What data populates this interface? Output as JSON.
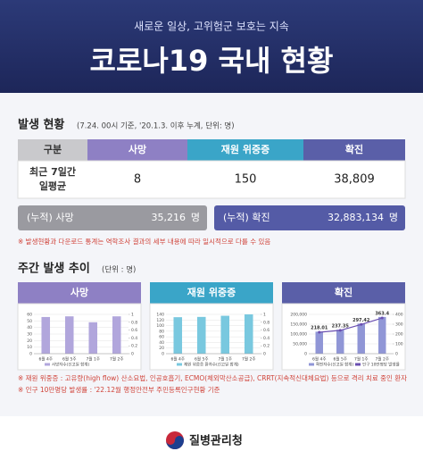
{
  "header": {
    "subtitle": "새로운 일상, 고위험군 보호는 지속",
    "title": "코로나19 국내 현황"
  },
  "status": {
    "title": "발생 현황",
    "note": "(7.24. 00시 기준, '20.1.3. 이후 누계, 단위: 명)",
    "table": {
      "columns": [
        "구분",
        "사망",
        "재원 위중증",
        "확진"
      ],
      "rows": [
        {
          "label": [
            "최근 7일간",
            "일평균"
          ],
          "values": [
            "8",
            "150",
            "38,809"
          ]
        }
      ]
    },
    "cumulative": [
      {
        "label": "(누적) 사망",
        "value": "35,216",
        "unit": "명"
      },
      {
        "label": "(누적) 확진",
        "value": "32,883,134",
        "unit": "명"
      }
    ],
    "footnote": "※ 발생현황과 다운로드 통계는 역학조사 결과의 세부 내용에 따라 일시적으로 다를 수 있음"
  },
  "weekly": {
    "title": "주간 발생 추이",
    "unit": "(단위 : 명)",
    "charts": [
      {
        "type": "bar",
        "title": "사망",
        "categories": [
          "6월 4주",
          "6월 5주",
          "7월 1주",
          "7월 2주"
        ],
        "series": [
          {
            "name": "사망자수(신고일 합계)",
            "color": "#b1a6dc",
            "values": [
              56,
              57,
              48,
              57
            ]
          }
        ],
        "ylim": [
          0,
          60
        ],
        "yticks": [
          0,
          10,
          20,
          30,
          40,
          50,
          60
        ],
        "y2lim": [
          0,
          1
        ],
        "y2ticks": [
          0,
          0.2,
          0.4,
          0.6,
          0.8,
          1
        ]
      },
      {
        "type": "bar",
        "title": "재원 위중증",
        "categories": [
          "6월 4주",
          "6월 5주",
          "7월 1주",
          "7월 2주"
        ],
        "series": [
          {
            "name": "재원 위중증 환자수(신고일 합계)",
            "color": "#79c8df",
            "values": [
              130,
              131,
              135,
              140
            ]
          }
        ],
        "ylim": [
          0,
          140
        ],
        "yticks": [
          0,
          20,
          40,
          60,
          80,
          100,
          120,
          140
        ],
        "y2lim": [
          0,
          1
        ],
        "y2ticks": [
          0,
          0.2,
          0.4,
          0.6,
          0.8,
          1
        ]
      },
      {
        "type": "bar",
        "title": "확진",
        "categories": [
          "6월 4주",
          "6월 5주",
          "7월 1주",
          "7월 2주"
        ],
        "series": [
          {
            "name": "확진자수(신고일 합계)",
            "color": "#9096d6",
            "values": [
              112000,
              122000,
              153000,
              187000
            ]
          },
          {
            "name": "인구 10만명당 발생률",
            "type": "line",
            "axis": "y2",
            "color": "#6a4fb0",
            "values": [
              218.01,
              237.35,
              297.42,
              363.4
            ]
          }
        ],
        "ylim": [
          0,
          200000
        ],
        "yticks": [
          0,
          {
            "value": 50000,
            "label": "50,000"
          },
          {
            "value": 100000,
            "label": "100,000"
          },
          {
            "value": 150000,
            "label": "150,000"
          },
          {
            "value": 200000,
            "label": "200,000"
          }
        ],
        "y2lim": [
          0,
          400
        ],
        "y2ticks": [
          0,
          100,
          200,
          300,
          400
        ]
      }
    ],
    "footnotes": [
      "※ 재원 위중증 : 고유량(high flow) 산소요법, 인공호흡기, ECMO(체외막산소공급), CRRT(지속적신대체요법) 등으로 격리 치료 중인 환자",
      "※ 인구 10만명당 발생률 : '22.12월 행정안전부 주민등록인구현황 기준"
    ]
  },
  "footer": {
    "agency": "질병관리청"
  }
}
